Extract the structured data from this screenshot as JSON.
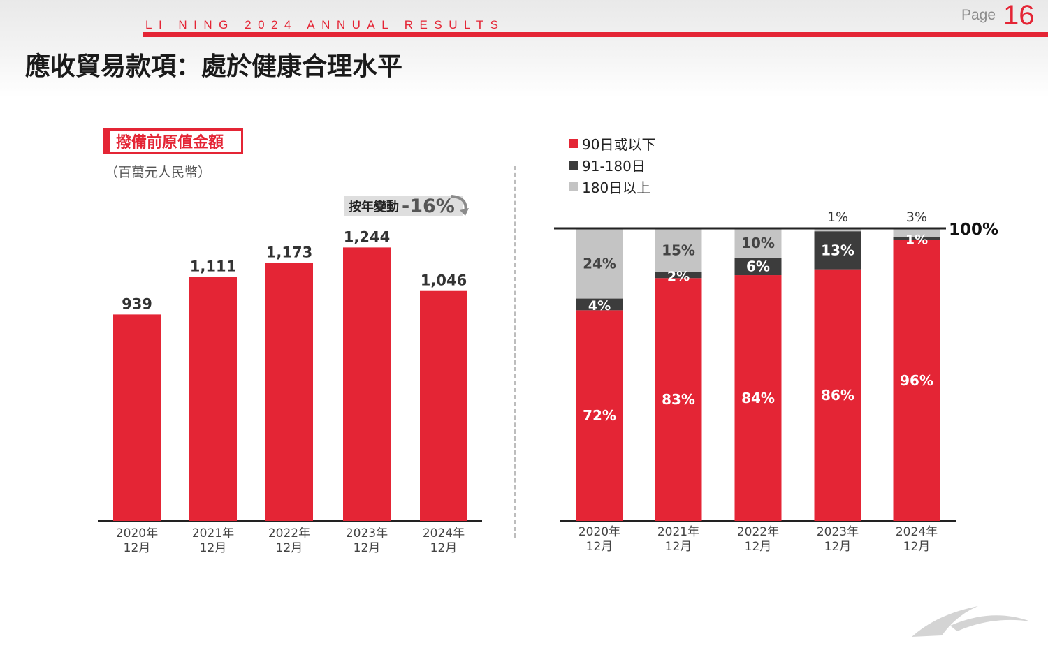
{
  "header": {
    "brand": "LI NING 2024 ANNUAL RESULTS",
    "page_label": "Page",
    "page_number": "16",
    "title": "應收貿易款項：處於健康合理水平"
  },
  "colors": {
    "red": "#e42535",
    "dark": "#3c3c3c",
    "light": "#c4c4c4"
  },
  "left_panel": {
    "subtitle": "撥備前原值金額",
    "unit": "（百萬元人民幣）",
    "yoy_label": "按年變動",
    "yoy_value": "-16%"
  },
  "legend": [
    {
      "label": "90日或以下",
      "color": "#e42535"
    },
    {
      "label": "91-180日",
      "color": "#3c3c3c"
    },
    {
      "label": "180日以上",
      "color": "#c4c4c4"
    }
  ],
  "chart_data": [
    {
      "type": "bar",
      "categories": [
        [
          "2020年",
          "12月"
        ],
        [
          "2021年",
          "12月"
        ],
        [
          "2022年",
          "12月"
        ],
        [
          "2023年",
          "12月"
        ],
        [
          "2024年",
          "12月"
        ]
      ],
      "values": [
        939,
        1111,
        1173,
        1244,
        1046
      ],
      "value_labels": [
        "939",
        "1,111",
        "1,173",
        "1,244",
        "1,046"
      ],
      "ylim": [
        0,
        1500
      ],
      "grid": false
    },
    {
      "type": "bar",
      "stacked": true,
      "categories": [
        [
          "2020年",
          "12月"
        ],
        [
          "2021年",
          "12月"
        ],
        [
          "2022年",
          "12月"
        ],
        [
          "2023年",
          "12月"
        ],
        [
          "2024年",
          "12月"
        ]
      ],
      "series": [
        {
          "name": "90日或以下",
          "values": [
            72,
            83,
            84,
            86,
            96
          ],
          "labels": [
            "72%",
            "83%",
            "84%",
            "86%",
            "96%"
          ]
        },
        {
          "name": "91-180日",
          "values": [
            4,
            2,
            6,
            13,
            1
          ],
          "labels": [
            "4%",
            "2%",
            "6%",
            "13%",
            "1%"
          ]
        },
        {
          "name": "180日以上",
          "values": [
            24,
            15,
            10,
            1,
            3
          ],
          "labels": [
            "24%",
            "15%",
            "10%",
            "1%",
            "3%"
          ]
        }
      ],
      "reference_label": "100%",
      "ylim": [
        0,
        100
      ],
      "grid": false
    }
  ]
}
